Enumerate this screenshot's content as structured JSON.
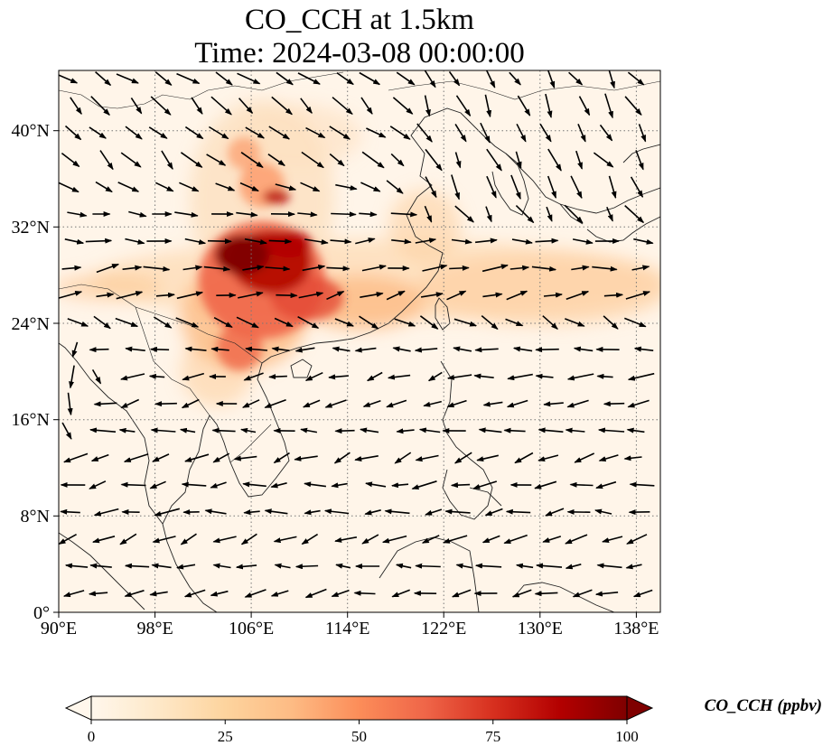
{
  "title": {
    "line1": "CO_CCH at 1.5km",
    "line2": "Time: 2024-03-08 00:00:00"
  },
  "axes": {
    "x_ticks": [
      "90°E",
      "98°E",
      "106°E",
      "114°E",
      "122°E",
      "130°E",
      "138°E"
    ],
    "y_ticks": [
      "0°",
      "8°N",
      "16°N",
      "24°N",
      "32°N",
      "40°N"
    ],
    "lon_range": [
      90,
      140
    ],
    "lat_range": [
      0,
      45
    ],
    "gridlines": true,
    "gridline_style": "dotted"
  },
  "colorbar": {
    "label": "CO_CCH (ppbv)",
    "ticks": [
      "0",
      "25",
      "50",
      "75",
      "100"
    ],
    "range": [
      0,
      100
    ],
    "extend": "both",
    "colormap": "OrRd",
    "colors": [
      "#fff7ec",
      "#fee8c8",
      "#fdd49e",
      "#fdbb84",
      "#fc8d59",
      "#ef6548",
      "#d7301f",
      "#b30000",
      "#7f0000"
    ]
  },
  "map_features": [
    "coastlines",
    "country-borders",
    "wind-vectors",
    "co-concentration-field"
  ]
}
